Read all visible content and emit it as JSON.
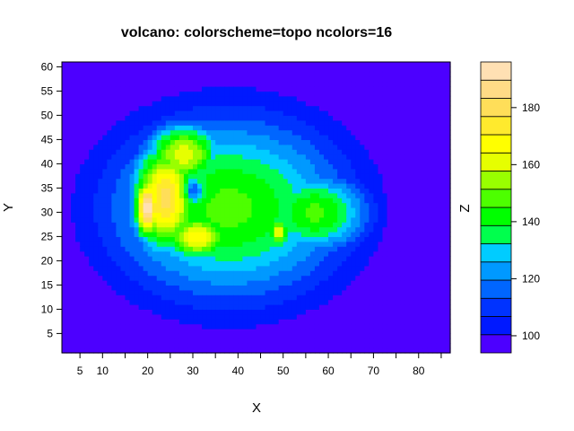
{
  "chart_data": {
    "type": "heatmap",
    "subtype": "filled-contour",
    "title": "volcano: colorscheme=topo ncolors=16",
    "xlabel": "X",
    "ylabel": "Y",
    "zlabel": "Z",
    "xlim": [
      1,
      87
    ],
    "ylim": [
      1,
      61
    ],
    "x_ticks": [
      5,
      10,
      20,
      30,
      40,
      50,
      60,
      70,
      80
    ],
    "y_ticks": [
      5,
      10,
      15,
      20,
      25,
      30,
      35,
      40,
      45,
      50,
      55,
      60
    ],
    "zlim": [
      94,
      196
    ],
    "colorbar_ticks": [
      100,
      120,
      140,
      160,
      180
    ],
    "n_colors": 16,
    "colorscheme": "topo",
    "colors": [
      "#4C00FF",
      "#0019FF",
      "#0033FF",
      "#0066FF",
      "#0099FF",
      "#00CCFF",
      "#00FF4D",
      "#00FF00",
      "#4DFF00",
      "#99FF00",
      "#E6FF00",
      "#FFFF00",
      "#FFEA2D",
      "#FFDE59",
      "#FFDB86",
      "#FFE0B3"
    ],
    "contour_levels": [
      94,
      100,
      106,
      112,
      118,
      124,
      130,
      136,
      142,
      148,
      154,
      160,
      166,
      172,
      178,
      184,
      190,
      196
    ],
    "peaks": [
      {
        "x": 20,
        "y": 31,
        "z": 195,
        "sx": 3.0,
        "sy": 7.0
      },
      {
        "x": 24,
        "y": 33,
        "z": 180,
        "sx": 8.0,
        "sy": 12.0
      },
      {
        "x": 28,
        "y": 42,
        "z": 165,
        "sx": 9.0,
        "sy": 7.0
      },
      {
        "x": 31,
        "y": 25,
        "z": 172,
        "sx": 8.0,
        "sy": 5.0
      },
      {
        "x": 30,
        "y": 34.5,
        "z": -26,
        "sx": 2.2,
        "sy": 2.2
      },
      {
        "x": 49,
        "y": 26,
        "z": 168,
        "sx": 2.5,
        "sy": 3.5
      },
      {
        "x": 57,
        "y": 30,
        "z": 150,
        "sx": 13.0,
        "sy": 9.0
      }
    ],
    "base_z": 94,
    "main_hill": {
      "x": 38,
      "y": 31,
      "z": 150,
      "sx": 28.0,
      "sy": 20.0
    }
  }
}
